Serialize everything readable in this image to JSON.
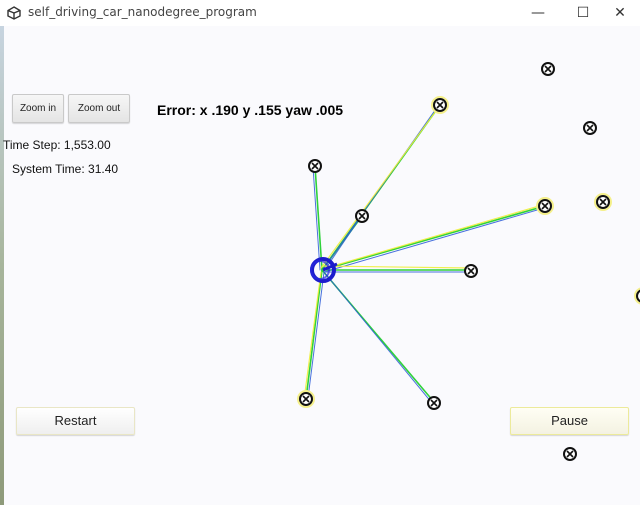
{
  "window": {
    "title": "self_driving_car_nanodegree_program",
    "minimize_glyph": "—",
    "maximize_glyph": "☐",
    "close_glyph": "✕"
  },
  "controls": {
    "zoom_in_label": "Zoom in",
    "zoom_out_label": "Zoom out",
    "restart_label": "Restart",
    "pause_label": "Pause"
  },
  "hud": {
    "error_text": "Error: x .190 y .155 yaw .005",
    "time_step_text": "Time Step: 1,553.00",
    "system_time_text": "System Time: 31.40"
  },
  "colors": {
    "vehicle": "#1c1ccc",
    "ray_green": "#2fd23a",
    "ray_yellow": "#f0ef3a",
    "ray_blue": "#2a5ad8",
    "landmark": "#111111",
    "landmark_highlight": "#f5f08a"
  }
}
